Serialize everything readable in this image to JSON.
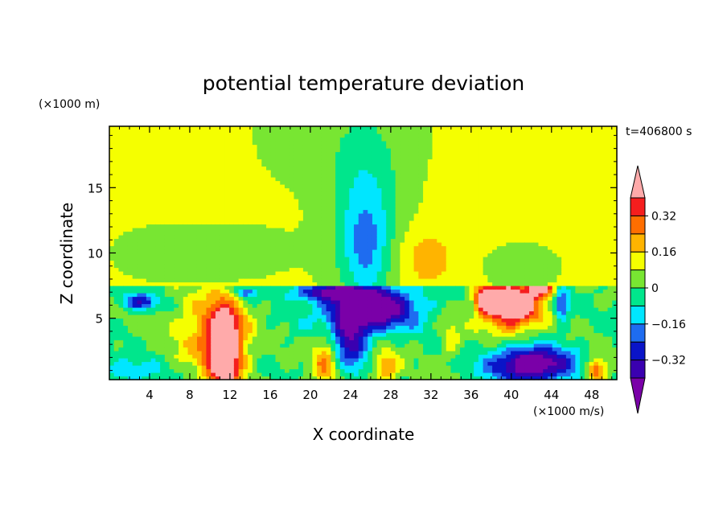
{
  "chart_data": {
    "type": "heatmap",
    "subtype": "filled-contour",
    "title": "potential temperature deviation",
    "xlabel": "X coordinate",
    "ylabel": "Z coordinate",
    "x_unit": "(×1000 m/s)",
    "y_unit": "(×1000 m)",
    "time_label": "t=406800 s",
    "xlim": [
      0,
      50.5
    ],
    "ylim": [
      0.3,
      19.7
    ],
    "x_ticks": [
      4,
      8,
      12,
      16,
      20,
      24,
      28,
      32,
      36,
      40,
      44,
      48
    ],
    "y_ticks": [
      5,
      10,
      15
    ],
    "colorbar": {
      "levels": [
        -0.4,
        -0.32,
        -0.24,
        -0.16,
        -0.08,
        0,
        0.08,
        0.16,
        0.24,
        0.32,
        0.4
      ],
      "labels": [
        0.32,
        0.16,
        0,
        -0.16,
        -0.32
      ],
      "colors": [
        "#7a00a8",
        "#3a00b0",
        "#0a14c8",
        "#1e6cf0",
        "#00e6ff",
        "#00e68c",
        "#78e632",
        "#f5ff00",
        "#ffb400",
        "#ff6e00",
        "#f51e1e",
        "#ffaaaa"
      ],
      "extend": "both"
    },
    "features": [
      {
        "x": 11.5,
        "z": 3.0,
        "value": 0.4
      },
      {
        "x": 25.5,
        "z": 13.0,
        "value": -0.32
      },
      {
        "x": 26.0,
        "z": 6.0,
        "value": -0.4
      },
      {
        "x": 31.5,
        "z": 10.0,
        "value": 0.16
      },
      {
        "x": 40.0,
        "z": 6.5,
        "value": 0.4
      },
      {
        "x": 42.0,
        "z": 1.5,
        "value": -0.4
      }
    ]
  }
}
